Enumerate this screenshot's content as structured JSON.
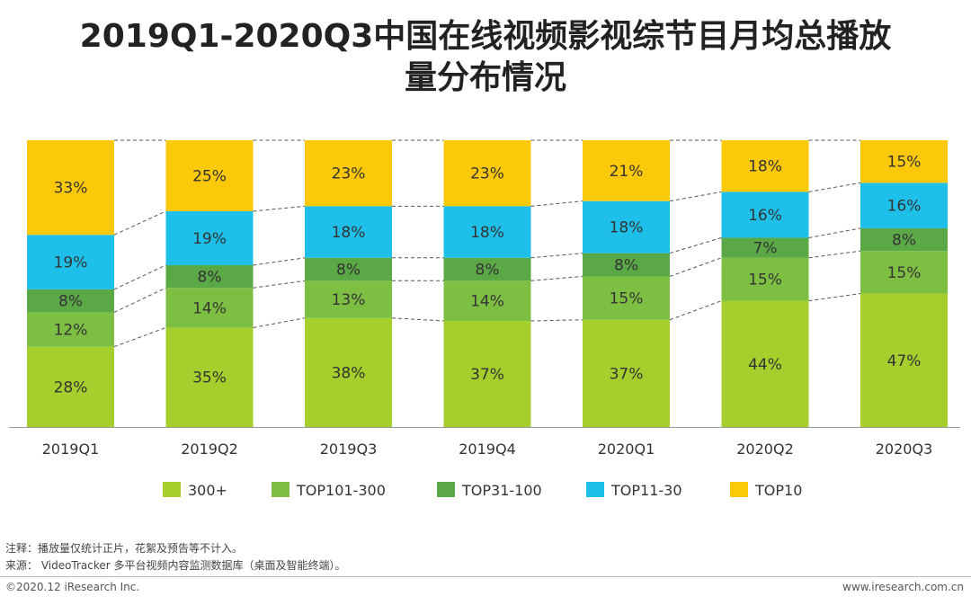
{
  "title_lines": [
    "2019Q1-2020Q3中国在线视频影视综节目月均总播放",
    "量分布情况"
  ],
  "chart_data": {
    "type": "bar",
    "stacked": true,
    "normalized": true,
    "title": "2019Q1-2020Q3中国在线视频影视综节目月均总播放量分布情况",
    "categories": [
      "2019Q1",
      "2019Q2",
      "2019Q3",
      "2019Q4",
      "2020Q1",
      "2020Q2",
      "2020Q3"
    ],
    "series": [
      {
        "name": "300+",
        "color": "#a5cf2c",
        "values": [
          28,
          35,
          38,
          37,
          37,
          44,
          47
        ],
        "labels": [
          "28%",
          "35%",
          "38%",
          "37%",
          "37%",
          "44%",
          "47%"
        ]
      },
      {
        "name": "TOP101-300",
        "color": "#7dbf42",
        "values": [
          12,
          14,
          13,
          14,
          15,
          15,
          15
        ],
        "labels": [
          "12%",
          "14%",
          "13%",
          "14%",
          "15%",
          "15%",
          "15%"
        ]
      },
      {
        "name": "TOP31-100",
        "color": "#5aa846",
        "values": [
          8,
          8,
          8,
          8,
          8,
          7,
          8
        ],
        "labels": [
          "8%",
          "8%",
          "8%",
          "8%",
          "8%",
          "7%",
          "8%"
        ]
      },
      {
        "name": "TOP11-30",
        "color": "#1ec0ea",
        "values": [
          19,
          19,
          18,
          18,
          18,
          16,
          16
        ],
        "labels": [
          "19%",
          "19%",
          "18%",
          "18%",
          "18%",
          "16%",
          "16%"
        ]
      },
      {
        "name": "TOP10",
        "color": "#fcc80a",
        "values": [
          33,
          25,
          23,
          23,
          21,
          18,
          15
        ],
        "labels": [
          "33%",
          "25%",
          "23%",
          "23%",
          "21%",
          "18%",
          "15%"
        ]
      }
    ],
    "legend_position": "bottom",
    "connector_lines": "dashed"
  },
  "notes": {
    "note": "注释：播放量仅统计正片，花絮及预告等不计入。",
    "source": "来源： VideoTracker 多平台视频内容监测数据库（桌面及智能终端）。"
  },
  "footer": {
    "copyright": "©2020.12 iResearch Inc.",
    "website": "www.iresearch.com.cn"
  }
}
